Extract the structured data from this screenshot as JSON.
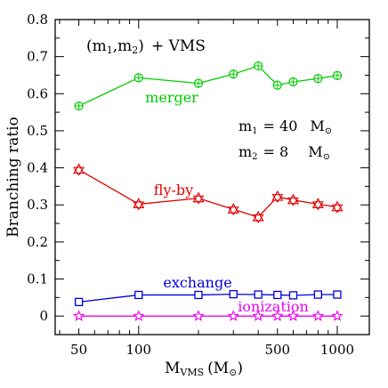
{
  "chart_data": {
    "type": "line",
    "title": "",
    "xlabel": "M",
    "xlabel_sub": "VMS",
    "xlabel_unit": "(M",
    "xlabel_unit_close": ")",
    "ylabel": "Branching ratio",
    "xscale": "log",
    "xlim": [
      38,
      1450
    ],
    "ylim": [
      -0.05,
      0.8
    ],
    "xticks_major": [
      50,
      100,
      500,
      1000
    ],
    "xtick_labels": [
      "50",
      "100",
      "500",
      "1000"
    ],
    "yticks_major": [
      0,
      0.1,
      0.2,
      0.3,
      0.4,
      0.5,
      0.6,
      0.7,
      0.8
    ],
    "ytick_labels": [
      "0",
      "0.1",
      "0.2",
      "0.3",
      "0.4",
      "0.5",
      "0.6",
      "0.7",
      "0.8"
    ],
    "x": [
      50,
      100,
      200,
      300,
      400,
      500,
      600,
      800,
      1000
    ],
    "series": [
      {
        "name": "merger",
        "color": "#00cc00",
        "marker": "circle-plus",
        "values": [
          0.567,
          0.643,
          0.628,
          0.653,
          0.675,
          0.623,
          0.632,
          0.641,
          0.649
        ]
      },
      {
        "name": "fly-by",
        "color": "#e00000",
        "marker": "triangle-star",
        "values": [
          0.395,
          0.302,
          0.318,
          0.288,
          0.267,
          0.322,
          0.313,
          0.302,
          0.294
        ]
      },
      {
        "name": "exchange",
        "color": "#0000dd",
        "marker": "square",
        "values": [
          0.038,
          0.057,
          0.057,
          0.059,
          0.058,
          0.057,
          0.056,
          0.058,
          0.058
        ]
      },
      {
        "name": "ionization",
        "color": "#ee00ee",
        "marker": "star",
        "values": [
          0.0,
          0.0,
          0.0,
          0.0,
          0.0,
          0.0,
          0.0,
          0.0,
          0.0
        ]
      }
    ],
    "annotations": {
      "setup_m1": "m",
      "setup_m1_sub": "1",
      "setup_m2": "m",
      "setup_m2_sub": "2",
      "setup_open": "(",
      "setup_comma": ",",
      "setup_close": ")",
      "setup_rest": "+ VMS",
      "m1_label": "m",
      "m1_sub": "1",
      "m1_value": "= 40",
      "m2_label": "m",
      "m2_sub": "2",
      "m2_value": "= 8",
      "mass_unit": "M"
    }
  }
}
